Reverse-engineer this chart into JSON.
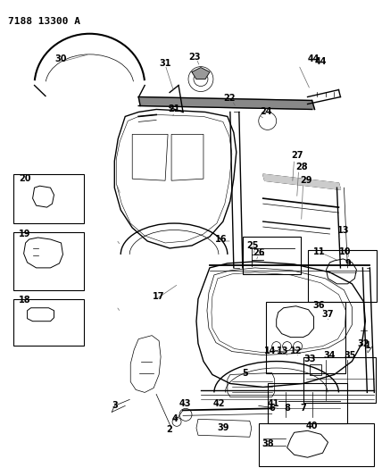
{
  "title": "7188 13300 A",
  "bg_color": "#ffffff",
  "line_color": "#000000",
  "figsize": [
    4.28,
    5.33
  ],
  "dpi": 100,
  "label_fontsize": 7,
  "title_fontsize": 8
}
